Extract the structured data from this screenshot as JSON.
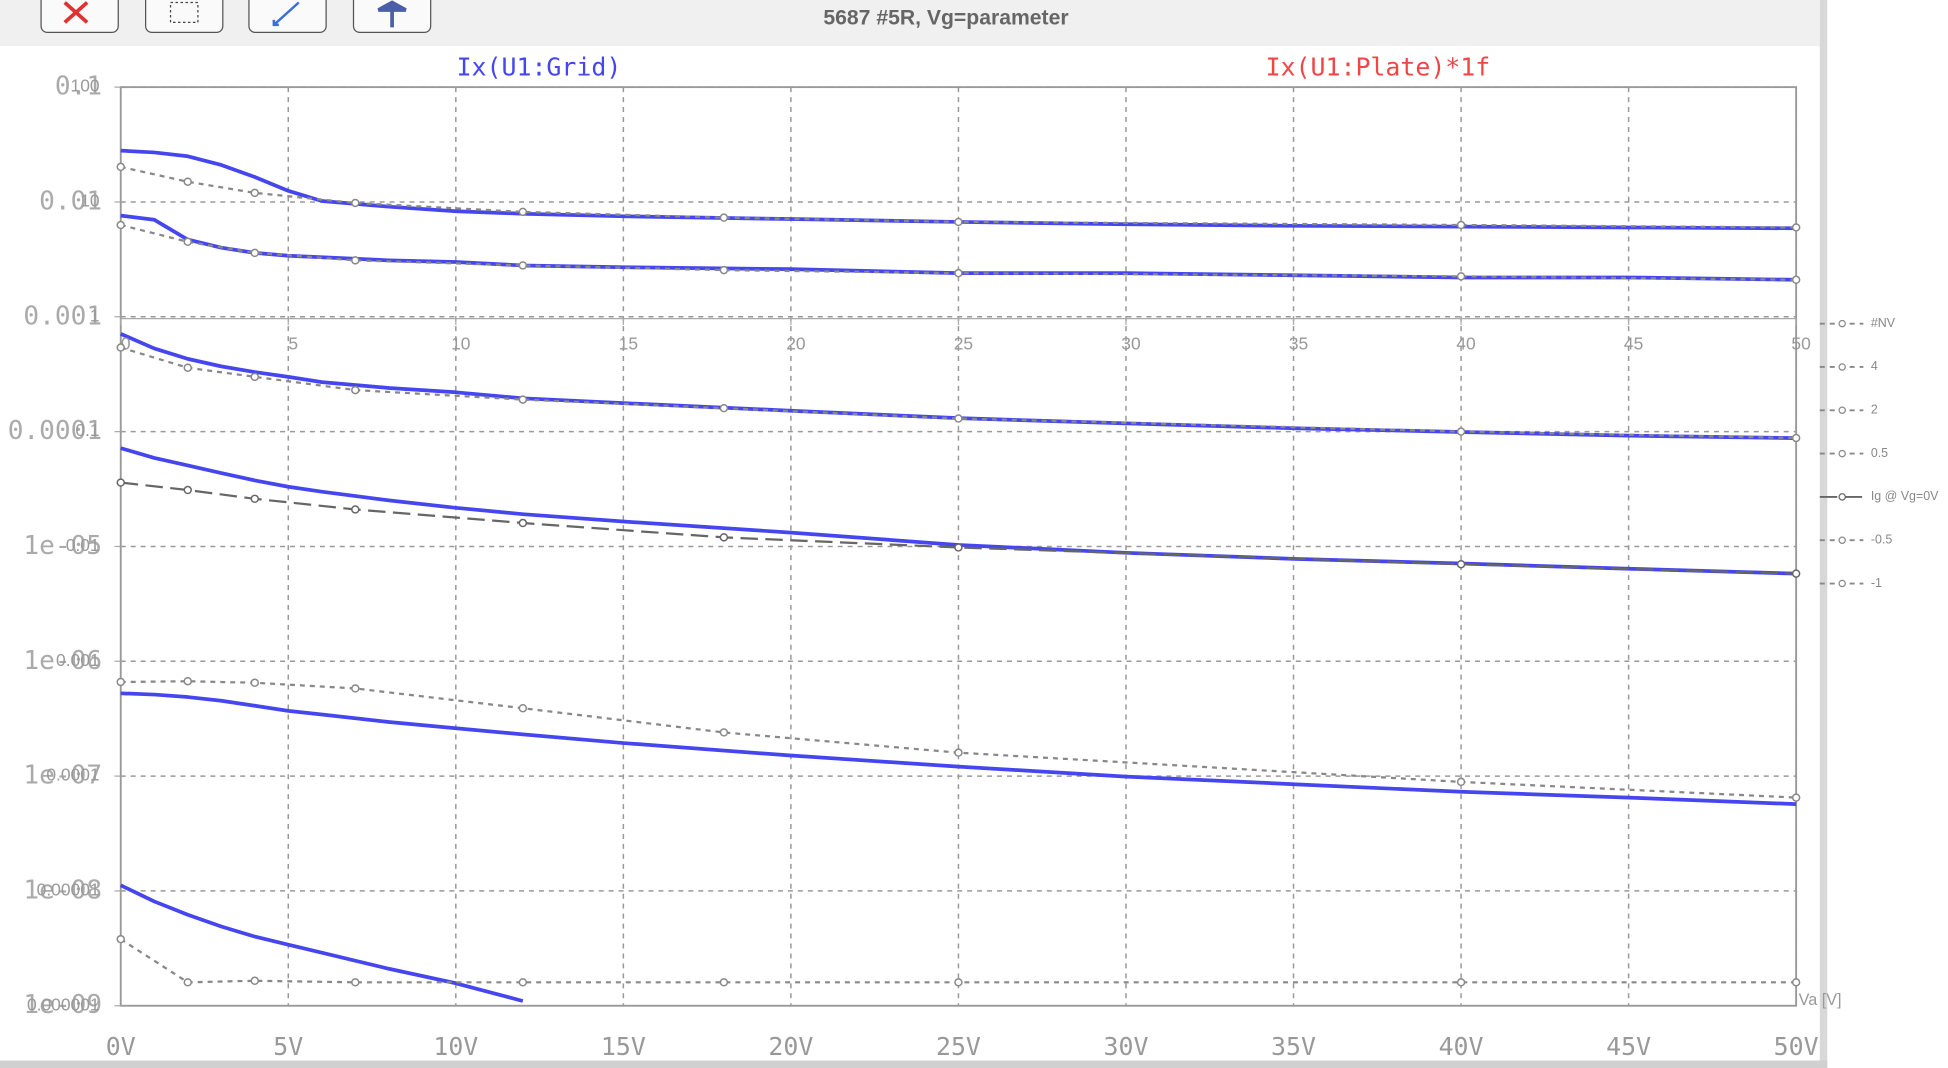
{
  "chart_data": [
    {
      "type": "line",
      "title": "5687 #5R, Vg=parameter",
      "trace_labels": [
        {
          "name": "Ix(U1:Grid)",
          "color": "#4646f0"
        },
        {
          "name": "Ix(U1:Plate)*1f",
          "color": "#f04646"
        }
      ],
      "x_label": "Va [V]",
      "log_y": true,
      "grid": true,
      "xlim": [
        0,
        50
      ],
      "xticks": [
        {
          "value": 0,
          "label": "0V"
        },
        {
          "value": 5,
          "label": "5V"
        },
        {
          "value": 10,
          "label": "10V"
        },
        {
          "value": 15,
          "label": "15V"
        },
        {
          "value": 20,
          "label": "20V"
        },
        {
          "value": 25,
          "label": "25V"
        },
        {
          "value": 30,
          "label": "30V"
        },
        {
          "value": 35,
          "label": "35V"
        },
        {
          "value": 40,
          "label": "40V"
        },
        {
          "value": 45,
          "label": "45V"
        },
        {
          "value": 50,
          "label": "50V"
        }
      ],
      "ylim": [
        1e-09,
        0.1
      ],
      "yticks": [
        0.1,
        0.01,
        0.001,
        0.0001,
        {
          "value": 1e-05,
          "label": "1e-05"
        },
        {
          "value": 1e-06,
          "label": "1e-06"
        },
        {
          "value": 1e-07,
          "label": "1e-07"
        },
        {
          "value": 1e-08,
          "label": "1e-08"
        },
        {
          "value": 1e-09,
          "label": "1e-09"
        }
      ],
      "x": [
        0,
        1,
        2,
        3,
        4,
        5,
        6,
        8,
        10,
        12,
        15,
        20,
        25,
        30,
        35,
        40,
        45,
        50
      ],
      "series": [
        {
          "color": "#4646f0",
          "values": [
            0.028,
            0.027,
            0.025,
            0.021,
            0.0165,
            0.0125,
            0.0102,
            0.0091,
            0.0083,
            0.0079,
            0.0075,
            0.0071,
            0.0067,
            0.0064,
            0.0062,
            0.0061,
            0.006,
            0.0059
          ]
        },
        {
          "color": "#4646f0",
          "values": [
            0.0076,
            0.007,
            0.0047,
            0.004,
            0.0036,
            0.0034,
            0.0033,
            0.0031,
            0.003,
            0.0028,
            0.0027,
            0.0026,
            0.0024,
            0.0024,
            0.0023,
            0.0022,
            0.0022,
            0.0021
          ]
        },
        {
          "color": "#4646f0",
          "values": [
            0.00071,
            0.00053,
            0.00043,
            0.00037,
            0.00033,
            0.0003,
            0.00027,
            0.00024,
            0.00022,
            0.000195,
            0.000177,
            0.000152,
            0.000131,
            0.000118,
            0.000107,
            9.93e-05,
            9.22e-05,
            8.77e-05
          ]
        },
        {
          "color": "#4646f0",
          "values": [
            7.18e-05,
            5.9e-05,
            5.07e-05,
            4.36e-05,
            3.76e-05,
            3.31e-05,
            3e-05,
            2.52e-05,
            2.17e-05,
            1.91e-05,
            1.65e-05,
            1.32e-05,
            1.03e-05,
            8.8e-06,
            7.8e-06,
            7.1e-06,
            6.4e-06,
            5.8e-06
          ]
        },
        {
          "color": "#4646f0",
          "values": [
            5.26e-07,
            5.13e-07,
            4.88e-07,
            4.53e-07,
            4.1e-07,
            3.7e-07,
            3.44e-07,
            2.96e-07,
            2.61e-07,
            2.31e-07,
            1.94e-07,
            1.51e-07,
            1.21e-07,
            9.9e-08,
            8.5e-08,
            7.3e-08,
            6.5e-08,
            5.7e-08
          ]
        },
        {
          "color": "#4646f0",
          "values": [
            1.12e-08,
            8.1e-09,
            6.2e-09,
            4.9e-09,
            4e-09,
            3.4e-09,
            2.9e-09,
            2.1e-09,
            1.57e-09,
            1.1e-09,
            null,
            null,
            null,
            null,
            null,
            null,
            null,
            null
          ]
        }
      ]
    },
    {
      "type": "line",
      "log_y": true,
      "grid": false,
      "legend": "right",
      "xlim": [
        0,
        50
      ],
      "xticks": [
        0,
        5,
        10,
        15,
        20,
        25,
        30,
        35,
        40,
        45,
        50
      ],
      "ylim": [
        1e-06,
        100
      ],
      "yticks": [
        100,
        10,
        1,
        0.1,
        0.01,
        0.001,
        0.0001,
        {
          "value": 1e-05,
          "label": "0.00001"
        },
        {
          "value": 1e-06,
          "label": "0.000001"
        }
      ],
      "x": [
        0,
        2,
        4,
        7,
        12,
        18,
        25,
        40,
        50
      ],
      "series": [
        {
          "name": "#NV",
          "color": "#888888",
          "style": "dashed",
          "values": [
            null,
            null,
            null,
            null,
            null,
            null,
            null,
            null,
            null
          ]
        },
        {
          "name": "4",
          "color": "#888888",
          "style": "dashed",
          "values": [
            20.2,
            15.0,
            12.0,
            9.8,
            8.2,
            7.3,
            6.7,
            6.3,
            6.0
          ]
        },
        {
          "name": "2",
          "color": "#888888",
          "style": "dashed",
          "values": [
            6.3,
            4.5,
            3.6,
            3.1,
            2.8,
            2.55,
            2.4,
            2.25,
            2.1
          ]
        },
        {
          "name": "0.5",
          "color": "#888888",
          "style": "dashed",
          "values": [
            0.54,
            0.36,
            0.3,
            0.23,
            0.19,
            0.16,
            0.13,
            0.1,
            0.088
          ]
        },
        {
          "name": "Ig @ Vg=0V",
          "color": "#666666",
          "style": "long-dashed",
          "values": [
            0.036,
            0.031,
            0.026,
            0.021,
            0.016,
            0.012,
            0.0098,
            0.007,
            0.0058
          ]
        },
        {
          "name": "-0.5",
          "color": "#888888",
          "style": "dashed",
          "values": [
            0.00066,
            0.00067,
            0.00065,
            0.00058,
            0.00039,
            0.00024,
            0.00016,
            8.9e-05,
            6.5e-05
          ]
        },
        {
          "name": "-1",
          "color": "#888888",
          "style": "dashed",
          "values": [
            3.8e-06,
            1.6e-06,
            1.65e-06,
            1.6e-06,
            1.6e-06,
            1.6e-06,
            1.6e-06,
            1.6e-06,
            1.6e-06
          ]
        }
      ]
    }
  ]
}
